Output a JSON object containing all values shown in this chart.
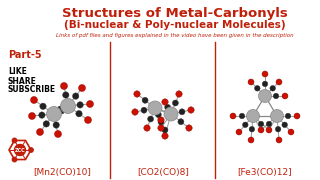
{
  "title_line1": "Structures of Metal-Carbonyls",
  "title_line2": "(Bi-nuclear & Poly-nuclear Molecules)",
  "subtitle": "Links of pdf files and figures explained in the video have been given in the description",
  "part_label": "Part-5",
  "social_labels": [
    "LIKE",
    "SHARE",
    "SUBSCRIBE"
  ],
  "molecule_labels": [
    "[Mn2(CO)10]",
    "[CO2(CO)8]",
    "[Fe3(CO)12]"
  ],
  "title_color": "#c0200a",
  "subtitle_color": "#c0200a",
  "part_color": "#c0200a",
  "social_color": "#000000",
  "molecule_label_color": "#c0200a",
  "bg_color": "#ffffff",
  "divider_color": "#c0200a",
  "logo_hex_color": "#c0200a",
  "logo_text": "ZCC",
  "title_fontsize": 9.5,
  "title2_fontsize": 7.5,
  "subtitle_fontsize": 4.0,
  "part_fontsize": 7,
  "social_fontsize": 5.5,
  "mol_label_fontsize": 6.5,
  "logo_fontsize": 3.5,
  "metal_gray": "#aaaaaa",
  "metal_gray2": "#888888",
  "carbon_dark": "#222222",
  "carbon_pink": "#d09090",
  "oxygen_red": "#cc1100",
  "oxygen_dark_red": "#881100",
  "stick_color": "#999999"
}
